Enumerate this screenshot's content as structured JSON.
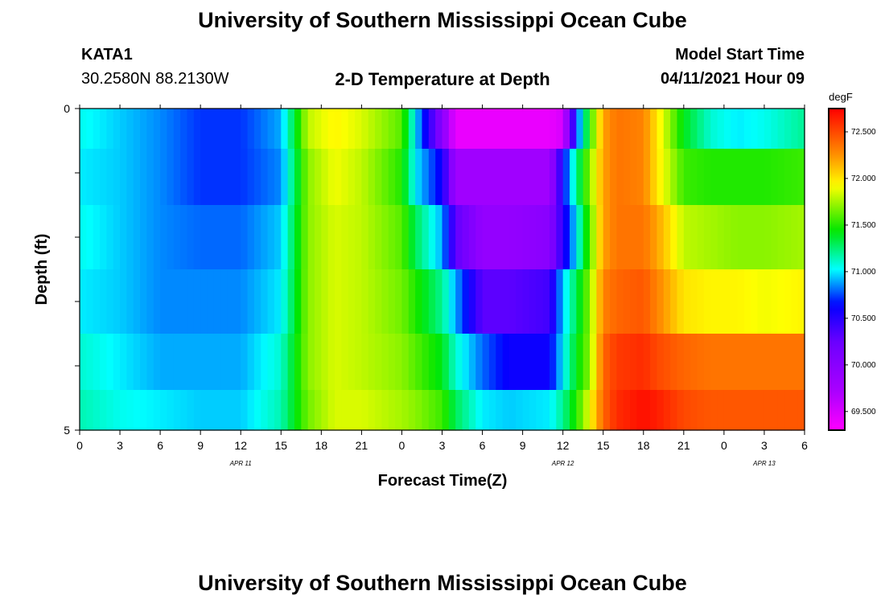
{
  "header": {
    "title": "University of Southern Mississippi Ocean Cube",
    "station_id": "KATA1",
    "station_coords": "30.2580N  88.2130W",
    "plot_title": "2-D Temperature at Depth",
    "model_start_label": "Model Start Time",
    "model_start_value": "04/11/2021 Hour 09"
  },
  "footer": {
    "title": "University of Southern Mississippi Ocean Cube"
  },
  "chart_data": {
    "type": "heatmap",
    "title": "2-D Temperature at Depth",
    "xlabel": "Forecast Time(Z)",
    "ylabel": "Depth (ft)",
    "x_unit": "hours since 04/11/2021 00Z",
    "xlim": [
      0,
      54
    ],
    "ylim": [
      0,
      5
    ],
    "y_inverted": true,
    "x_tick_values": [
      0,
      3,
      6,
      9,
      12,
      15,
      18,
      21,
      24,
      27,
      30,
      33,
      36,
      39,
      42,
      45,
      48,
      51,
      54
    ],
    "x_tick_labels": [
      "0",
      "3",
      "6",
      "9",
      "12",
      "15",
      "18",
      "21",
      "0",
      "3",
      "6",
      "9",
      "12",
      "15",
      "18",
      "21",
      "0",
      "3",
      "6"
    ],
    "y_tick_values": [
      0,
      1,
      2,
      3,
      4,
      5
    ],
    "y_tick_labels": [
      "0",
      "",
      "",
      "",
      "",
      "5"
    ],
    "date_labels": [
      {
        "x": 12,
        "text": "APR  11"
      },
      {
        "x": 36,
        "text": "APR  12"
      },
      {
        "x": 51,
        "text": "APR  13"
      }
    ],
    "depth_levels_ft": [
      0.25,
      1,
      2,
      3,
      4,
      4.75
    ],
    "colorbar": {
      "unit": "degF",
      "min": 69.3,
      "max": 72.75,
      "ticks": [
        69.5,
        70.0,
        70.5,
        71.0,
        71.5,
        72.0,
        72.5
      ],
      "tick_labels": [
        "69.500",
        "70.000",
        "70.500",
        "71.000",
        "71.500",
        "72.000",
        "72.500"
      ]
    },
    "profiles": {
      "x": [
        0,
        3,
        6,
        9,
        12,
        15,
        17,
        19,
        21,
        24,
        25,
        27,
        28,
        30,
        32,
        35,
        36,
        37,
        38,
        39,
        40,
        42,
        43,
        45,
        47,
        49,
        51,
        54
      ],
      "rows": [
        [
          71.05,
          70.95,
          70.85,
          70.72,
          70.72,
          70.9,
          71.8,
          71.95,
          71.85,
          71.6,
          71.0,
          70.0,
          69.4,
          69.4,
          69.4,
          69.4,
          69.5,
          70.7,
          71.5,
          72.2,
          72.35,
          72.3,
          72.0,
          71.4,
          71.1,
          71.0,
          71.05,
          71.2
        ],
        [
          71.0,
          70.95,
          70.85,
          70.72,
          70.72,
          70.85,
          71.7,
          71.9,
          71.8,
          71.5,
          71.0,
          70.6,
          69.8,
          69.8,
          69.8,
          69.8,
          70.6,
          71.2,
          71.7,
          72.2,
          72.35,
          72.3,
          72.0,
          71.55,
          71.5,
          71.5,
          71.5,
          71.55
        ],
        [
          71.05,
          70.95,
          70.85,
          70.8,
          70.8,
          70.95,
          71.7,
          71.85,
          71.8,
          71.6,
          71.3,
          70.9,
          70.3,
          69.9,
          69.9,
          70.0,
          70.5,
          71.0,
          71.6,
          72.2,
          72.35,
          72.35,
          72.2,
          71.8,
          71.75,
          71.7,
          71.7,
          71.75
        ],
        [
          71.0,
          70.95,
          70.85,
          70.85,
          70.85,
          71.0,
          71.7,
          71.85,
          71.8,
          71.65,
          71.5,
          71.2,
          70.9,
          70.3,
          70.3,
          70.4,
          70.95,
          71.3,
          71.7,
          72.3,
          72.4,
          72.45,
          72.3,
          72.0,
          71.95,
          71.95,
          71.9,
          71.95
        ],
        [
          71.1,
          71.0,
          70.9,
          70.9,
          70.9,
          71.1,
          71.7,
          71.85,
          71.8,
          71.7,
          71.6,
          71.4,
          71.1,
          70.8,
          70.6,
          70.6,
          71.0,
          71.4,
          71.7,
          72.4,
          72.55,
          72.6,
          72.5,
          72.4,
          72.35,
          72.35,
          72.35,
          72.35
        ],
        [
          71.15,
          71.05,
          71.0,
          70.95,
          70.95,
          71.15,
          71.65,
          71.85,
          71.85,
          71.75,
          71.7,
          71.55,
          71.3,
          71.0,
          70.95,
          71.0,
          71.2,
          71.5,
          71.9,
          72.4,
          72.6,
          72.7,
          72.65,
          72.5,
          72.45,
          72.45,
          72.45,
          72.45
        ]
      ]
    }
  }
}
